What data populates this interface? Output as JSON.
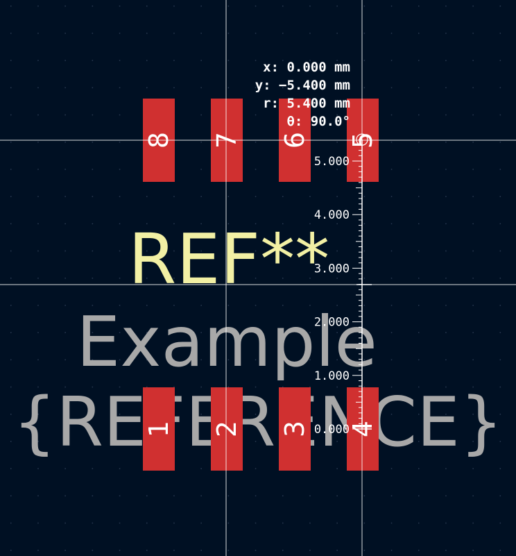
{
  "canvas": {
    "background": "#001023",
    "grid_dot_color": "#2a3a52",
    "crosshair_color": "#ffffff",
    "grid_visible": true
  },
  "colors": {
    "pad": "#d03030",
    "pad_number": "#ffffff",
    "reference_text": "#f2f0a4",
    "value_text": "#a8a8a8",
    "ruler": "#ffffff"
  },
  "footprint": {
    "reference": "REF**",
    "value_line_1": "Example",
    "value_line_2": "{REFERENCE}",
    "pads_top": [
      {
        "number": "8"
      },
      {
        "number": "7"
      },
      {
        "number": "6"
      },
      {
        "number": "5"
      }
    ],
    "pads_bottom": [
      {
        "number": "1"
      },
      {
        "number": "2"
      },
      {
        "number": "3"
      },
      {
        "number": "4"
      }
    ]
  },
  "ruler": {
    "unit": "mm",
    "labels": [
      "5.000",
      "4.000",
      "3.000",
      "2.000",
      "1.000",
      "0.000"
    ],
    "length_mm": 5.4
  },
  "measurement": {
    "x": "x: 0.000 mm",
    "y": "y: −5.400 mm",
    "r": "r: 5.400 mm",
    "theta": "θ: 90.0°"
  }
}
